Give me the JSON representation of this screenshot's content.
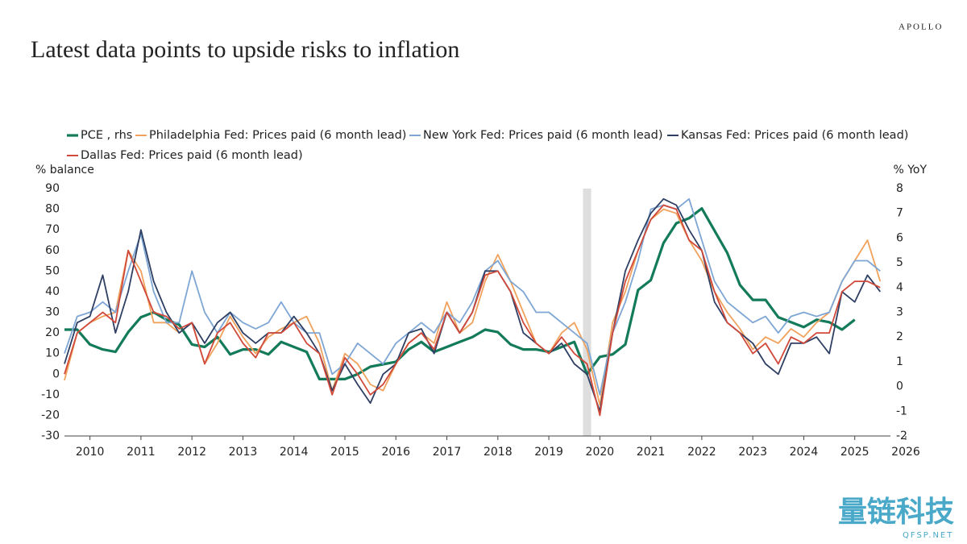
{
  "header": {
    "brand": "APOLLO"
  },
  "watermark": {
    "name": "量链科技",
    "site": "QFSP.NET"
  },
  "chart_data": {
    "type": "line",
    "title": "Latest data points to upside risks to inflation",
    "ylabel": "% balance",
    "y2label": "% YoY",
    "x": [
      2010.0,
      2010.25,
      2010.5,
      2010.75,
      2011.0,
      2011.25,
      2011.5,
      2011.75,
      2012.0,
      2012.25,
      2012.5,
      2012.75,
      2013.0,
      2013.25,
      2013.5,
      2013.75,
      2014.0,
      2014.25,
      2014.5,
      2014.75,
      2015.0,
      2015.25,
      2015.5,
      2015.75,
      2016.0,
      2016.25,
      2016.5,
      2016.75,
      2017.0,
      2017.25,
      2017.5,
      2017.75,
      2018.0,
      2018.25,
      2018.5,
      2018.75,
      2019.0,
      2019.25,
      2019.5,
      2019.75,
      2020.0,
      2020.25,
      2020.5,
      2020.75,
      2021.0,
      2021.25,
      2021.5,
      2021.75,
      2022.0,
      2022.25,
      2022.5,
      2022.75,
      2023.0,
      2023.25,
      2023.5,
      2023.75,
      2024.0,
      2024.25,
      2024.5,
      2024.75,
      2025.0,
      2025.25,
      2025.5,
      2025.75,
      2026.0
    ],
    "series": [
      {
        "name": "PCE , rhs",
        "color": "#137a5a",
        "axis": "y2",
        "values": [
          2.3,
          2.3,
          1.7,
          1.5,
          1.4,
          2.2,
          2.8,
          3.0,
          2.7,
          2.5,
          1.7,
          1.6,
          2.0,
          1.3,
          1.5,
          1.5,
          1.3,
          1.8,
          1.6,
          1.4,
          0.3,
          0.3,
          0.3,
          0.5,
          0.8,
          0.9,
          1.0,
          1.5,
          1.8,
          1.4,
          1.6,
          1.8,
          2.0,
          2.3,
          2.2,
          1.7,
          1.5,
          1.5,
          1.4,
          1.6,
          1.8,
          0.5,
          1.2,
          1.3,
          1.7,
          3.9,
          4.3,
          5.8,
          6.6,
          6.8,
          7.2,
          6.3,
          5.4,
          4.1,
          3.5,
          3.5,
          2.8,
          2.6,
          2.4,
          2.7,
          2.6,
          2.3,
          2.7,
          null,
          null
        ]
      },
      {
        "name": "Philadelphia Fed: Prices paid (6 month lead)",
        "color": "#f0a25c",
        "values": [
          -3,
          20,
          25,
          28,
          30,
          60,
          50,
          25,
          25,
          20,
          25,
          5,
          15,
          28,
          18,
          10,
          18,
          22,
          25,
          28,
          15,
          -8,
          10,
          5,
          -5,
          -8,
          5,
          15,
          20,
          15,
          35,
          20,
          25,
          45,
          58,
          45,
          30,
          15,
          10,
          20,
          25,
          12,
          -15,
          25,
          40,
          60,
          75,
          80,
          78,
          65,
          55,
          40,
          30,
          22,
          12,
          18,
          15,
          22,
          18,
          25,
          30,
          45,
          55,
          65,
          45
        ]
      },
      {
        "name": "New York Fed: Prices paid (6 month lead)",
        "color": "#7ea6d4",
        "values": [
          10,
          28,
          30,
          35,
          30,
          50,
          68,
          40,
          25,
          25,
          50,
          30,
          20,
          30,
          25,
          22,
          25,
          35,
          25,
          20,
          20,
          0,
          5,
          15,
          10,
          5,
          15,
          20,
          25,
          20,
          30,
          25,
          35,
          50,
          55,
          45,
          40,
          30,
          30,
          25,
          20,
          15,
          -10,
          20,
          35,
          55,
          80,
          82,
          80,
          85,
          65,
          45,
          35,
          30,
          25,
          28,
          20,
          28,
          30,
          28,
          30,
          45,
          55,
          55,
          50
        ]
      },
      {
        "name": "Kansas Fed: Prices paid (6 month lead)",
        "color": "#2e3f63",
        "values": [
          5,
          25,
          28,
          48,
          20,
          40,
          70,
          45,
          30,
          20,
          25,
          15,
          25,
          30,
          20,
          15,
          20,
          20,
          28,
          20,
          10,
          -8,
          5,
          -5,
          -14,
          0,
          5,
          20,
          22,
          10,
          30,
          20,
          30,
          50,
          50,
          40,
          20,
          15,
          10,
          15,
          5,
          0,
          -18,
          20,
          50,
          65,
          78,
          85,
          82,
          70,
          60,
          35,
          25,
          20,
          15,
          5,
          0,
          15,
          15,
          18,
          10,
          40,
          35,
          48,
          40
        ]
      },
      {
        "name": "Dallas Fed: Prices paid (6 month lead)",
        "color": "#d0493a",
        "values": [
          0,
          20,
          25,
          30,
          25,
          60,
          45,
          30,
          28,
          22,
          25,
          5,
          20,
          25,
          15,
          8,
          20,
          20,
          25,
          15,
          10,
          -10,
          8,
          0,
          -10,
          -5,
          5,
          15,
          20,
          12,
          30,
          20,
          30,
          48,
          50,
          40,
          25,
          15,
          10,
          18,
          10,
          5,
          -20,
          20,
          45,
          60,
          75,
          82,
          80,
          65,
          60,
          40,
          25,
          20,
          10,
          15,
          5,
          18,
          15,
          20,
          20,
          40,
          45,
          45,
          42
        ]
      }
    ],
    "shaded_periods": [
      [
        2020.17,
        2020.33
      ]
    ],
    "xlim": [
      2010.0,
      2026.2
    ],
    "xticks": [
      {
        "value": 2010.5,
        "label": "2010"
      },
      {
        "value": 2011.5,
        "label": "2011"
      },
      {
        "value": 2012.5,
        "label": "2012"
      },
      {
        "value": 2013.5,
        "label": "2013"
      },
      {
        "value": 2014.5,
        "label": "2014"
      },
      {
        "value": 2015.5,
        "label": "2015"
      },
      {
        "value": 2016.5,
        "label": "2016"
      },
      {
        "value": 2017.5,
        "label": "2017"
      },
      {
        "value": 2018.5,
        "label": "2018"
      },
      {
        "value": 2019.5,
        "label": "2019"
      },
      {
        "value": 2020.5,
        "label": "2020"
      },
      {
        "value": 2021.5,
        "label": "2021"
      },
      {
        "value": 2022.5,
        "label": "2022"
      },
      {
        "value": 2023.5,
        "label": "2023"
      },
      {
        "value": 2024.5,
        "label": "2024"
      },
      {
        "value": 2025.5,
        "label": "2025"
      },
      {
        "value": 2026.5,
        "label": "2026"
      }
    ],
    "ylim": [
      -30,
      90
    ],
    "yticks": [
      -30,
      -20,
      -10,
      0,
      10,
      20,
      30,
      40,
      50,
      60,
      70,
      80,
      90
    ],
    "y2lim": [
      -2,
      8
    ],
    "y2ticks": [
      -2,
      -1,
      0,
      1,
      2,
      3,
      4,
      5,
      6,
      7,
      8
    ],
    "grid": false
  }
}
